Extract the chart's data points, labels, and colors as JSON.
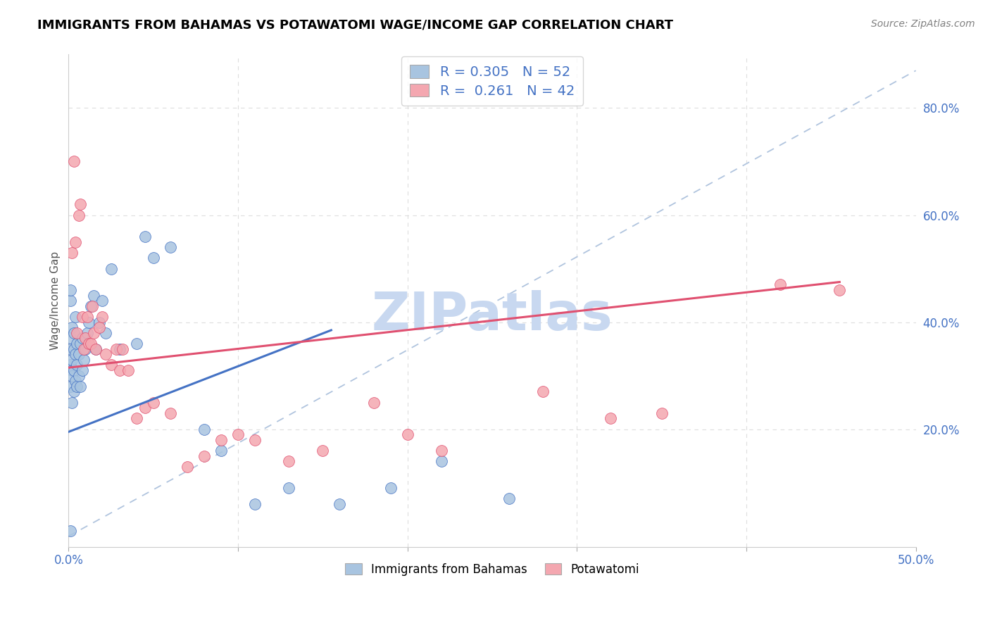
{
  "title": "IMMIGRANTS FROM BAHAMAS VS POTAWATOMI WAGE/INCOME GAP CORRELATION CHART",
  "source": "Source: ZipAtlas.com",
  "ylabel": "Wage/Income Gap",
  "right_yticks": [
    "20.0%",
    "40.0%",
    "60.0%",
    "80.0%"
  ],
  "right_ytick_vals": [
    0.2,
    0.4,
    0.6,
    0.8
  ],
  "legend_bottom1": "Immigrants from Bahamas",
  "legend_bottom2": "Potawatomi",
  "color_blue": "#a8c4e0",
  "color_pink": "#f4a7b0",
  "color_blue_line": "#4472C4",
  "color_pink_line": "#e05070",
  "color_blue_text": "#4472C4",
  "xlim": [
    0.0,
    0.5
  ],
  "ylim": [
    -0.02,
    0.9
  ],
  "blue_trend_x0": 0.0,
  "blue_trend_x1": 0.155,
  "blue_trend_y0": 0.195,
  "blue_trend_y1": 0.385,
  "pink_trend_x0": 0.0,
  "pink_trend_x1": 0.455,
  "pink_trend_y0": 0.315,
  "pink_trend_y1": 0.475,
  "dash_line_x0": 0.0,
  "dash_line_x1": 0.5,
  "dash_line_y0": 0.0,
  "dash_line_y1": 0.87,
  "blue_scatter_x": [
    0.001,
    0.001,
    0.001,
    0.001,
    0.001,
    0.001,
    0.001,
    0.002,
    0.002,
    0.002,
    0.002,
    0.002,
    0.003,
    0.003,
    0.003,
    0.003,
    0.004,
    0.004,
    0.004,
    0.005,
    0.005,
    0.005,
    0.006,
    0.006,
    0.007,
    0.007,
    0.008,
    0.008,
    0.009,
    0.01,
    0.011,
    0.012,
    0.013,
    0.015,
    0.016,
    0.018,
    0.02,
    0.022,
    0.025,
    0.03,
    0.04,
    0.045,
    0.05,
    0.06,
    0.08,
    0.09,
    0.11,
    0.13,
    0.16,
    0.19,
    0.22,
    0.26
  ],
  "blue_scatter_y": [
    0.01,
    0.44,
    0.46,
    0.28,
    0.32,
    0.35,
    0.37,
    0.31,
    0.25,
    0.3,
    0.33,
    0.39,
    0.27,
    0.31,
    0.35,
    0.38,
    0.29,
    0.34,
    0.41,
    0.28,
    0.32,
    0.36,
    0.3,
    0.34,
    0.28,
    0.36,
    0.31,
    0.37,
    0.33,
    0.35,
    0.38,
    0.4,
    0.43,
    0.45,
    0.35,
    0.4,
    0.44,
    0.38,
    0.5,
    0.35,
    0.36,
    0.56,
    0.52,
    0.54,
    0.2,
    0.16,
    0.06,
    0.09,
    0.06,
    0.09,
    0.14,
    0.07
  ],
  "pink_scatter_x": [
    0.002,
    0.003,
    0.004,
    0.005,
    0.006,
    0.007,
    0.008,
    0.009,
    0.01,
    0.011,
    0.012,
    0.013,
    0.014,
    0.015,
    0.016,
    0.018,
    0.02,
    0.022,
    0.025,
    0.028,
    0.03,
    0.032,
    0.035,
    0.04,
    0.045,
    0.05,
    0.06,
    0.07,
    0.08,
    0.09,
    0.1,
    0.11,
    0.13,
    0.15,
    0.18,
    0.2,
    0.22,
    0.28,
    0.32,
    0.35,
    0.42,
    0.455
  ],
  "pink_scatter_y": [
    0.53,
    0.7,
    0.55,
    0.38,
    0.6,
    0.62,
    0.41,
    0.35,
    0.37,
    0.41,
    0.36,
    0.36,
    0.43,
    0.38,
    0.35,
    0.39,
    0.41,
    0.34,
    0.32,
    0.35,
    0.31,
    0.35,
    0.31,
    0.22,
    0.24,
    0.25,
    0.23,
    0.13,
    0.15,
    0.18,
    0.19,
    0.18,
    0.14,
    0.16,
    0.25,
    0.19,
    0.16,
    0.27,
    0.22,
    0.23,
    0.47,
    0.46
  ],
  "watermark": "ZIPatlas",
  "watermark_color": "#c8d8f0",
  "background_color": "#ffffff",
  "grid_color": "#dddddd"
}
